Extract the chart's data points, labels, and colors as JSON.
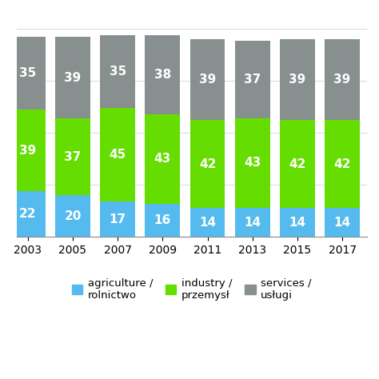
{
  "years": [
    2003,
    2005,
    2007,
    2009,
    2011,
    2013,
    2015,
    2017
  ],
  "agriculture": [
    22,
    20,
    17,
    16,
    14,
    14,
    14,
    14
  ],
  "industry": [
    39,
    37,
    45,
    43,
    42,
    43,
    42,
    42
  ],
  "services": [
    35,
    39,
    35,
    38,
    39,
    37,
    39,
    39
  ],
  "color_agriculture": "#55bbee",
  "color_industry": "#66dd00",
  "color_services": "#888f8f",
  "legend_labels": [
    "agriculture /\nrolnictwo",
    "industry /\nprzemysł",
    "services /\nusługi"
  ],
  "background_color": "#ffffff",
  "bar_width": 0.78,
  "label_fontsize": 11,
  "tick_fontsize": 10,
  "legend_fontsize": 9.5
}
